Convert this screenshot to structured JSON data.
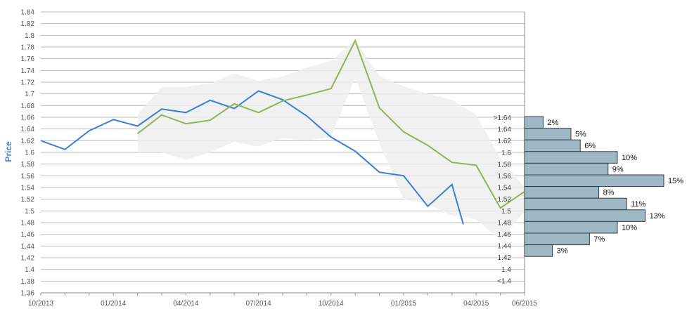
{
  "colors": {
    "actual": "#3a7fd0",
    "forecast": "#8fb356",
    "band": "#eeeeee",
    "bar_fill": "#9fb6c3",
    "bar_stroke": "#2f3f48",
    "grid": "#bbbbbb",
    "ylabel": "#4a7fc4"
  },
  "chart_data": {
    "type": "line",
    "title": "",
    "ylabel": "Price",
    "xlabel": "",
    "ylim": [
      1.36,
      1.84
    ],
    "y_ticks": [
      "1.84",
      "1.82",
      "1.8",
      "1.78",
      "1.76",
      "1.74",
      "1.72",
      "1.7",
      "1.68",
      "1.66",
      "1.64",
      "1.62",
      "1.6",
      "1.58",
      "1.56",
      "1.54",
      "1.52",
      "1.5",
      "1.48",
      "1.46",
      "1.44",
      "1.42",
      "1.4",
      "1.38",
      "1.36"
    ],
    "x_ticks": [
      "10/2013",
      "01/2014",
      "04/2014",
      "07/2014",
      "10/2014",
      "01/2015",
      "04/2015",
      "06/2015"
    ],
    "x_domain": [
      "2013-10",
      "2015-06"
    ],
    "grid": true,
    "series": [
      {
        "key": "actual",
        "x": [
          "2013-10",
          "2013-11",
          "2013-12",
          "2014-01",
          "2014-02",
          "2014-03",
          "2014-04",
          "2014-05",
          "2014-06",
          "2014-07",
          "2014-08",
          "2014-09",
          "2014-10",
          "2014-11",
          "2014-12",
          "2015-01",
          "2015-02",
          "2015-03",
          "2015-03-15"
        ],
        "values": [
          1.62,
          1.605,
          1.637,
          1.656,
          1.645,
          1.674,
          1.668,
          1.689,
          1.675,
          1.705,
          1.69,
          1.662,
          1.626,
          1.602,
          1.566,
          1.56,
          1.508,
          1.545,
          1.477
        ]
      },
      {
        "key": "forecast",
        "x": [
          "2014-02",
          "2014-03",
          "2014-04",
          "2014-05",
          "2014-06",
          "2014-07",
          "2014-08",
          "2014-09",
          "2014-10",
          "2014-11",
          "2014-12",
          "2015-01",
          "2015-02",
          "2015-03",
          "2015-04",
          "2015-05",
          "2015-06"
        ],
        "values": [
          1.632,
          1.664,
          1.649,
          1.655,
          1.683,
          1.668,
          1.688,
          1.698,
          1.709,
          1.791,
          1.676,
          1.635,
          1.612,
          1.583,
          1.578,
          1.505,
          1.533
        ]
      }
    ],
    "band": {
      "x": [
        "2014-02",
        "2014-03",
        "2014-04",
        "2014-05",
        "2014-06",
        "2014-07",
        "2014-08",
        "2014-09",
        "2014-10",
        "2014-11",
        "2014-12",
        "2015-01",
        "2015-02",
        "2015-03",
        "2015-04",
        "2015-05",
        "2015-06"
      ],
      "upper": [
        1.665,
        1.712,
        1.712,
        1.718,
        1.735,
        1.722,
        1.73,
        1.745,
        1.757,
        1.792,
        1.73,
        1.713,
        1.7,
        1.69,
        1.664,
        1.59,
        1.54
      ],
      "lower": [
        1.6,
        1.6,
        1.587,
        1.6,
        1.618,
        1.61,
        1.625,
        1.62,
        1.626,
        1.728,
        1.615,
        1.52,
        1.512,
        1.492,
        1.486,
        1.45,
        1.5
      ]
    },
    "histogram": {
      "bins": [
        ">1.64",
        "1.64",
        "1.62",
        "1.6",
        "1.58",
        "1.56",
        "1.54",
        "1.52",
        "1.5",
        "1.48",
        "1.46",
        "1.44",
        "1.42",
        "1.4",
        "<1.4"
      ],
      "percentages": [
        2,
        5,
        6,
        10,
        9,
        15,
        8,
        11,
        13,
        10,
        7,
        3,
        null,
        null,
        null
      ],
      "labels": [
        "2%",
        "5%",
        "6%",
        "10%",
        "9%",
        "15%",
        "8%",
        "11%",
        "13%",
        "10%",
        "7%",
        "3%",
        "",
        "",
        ""
      ]
    }
  }
}
